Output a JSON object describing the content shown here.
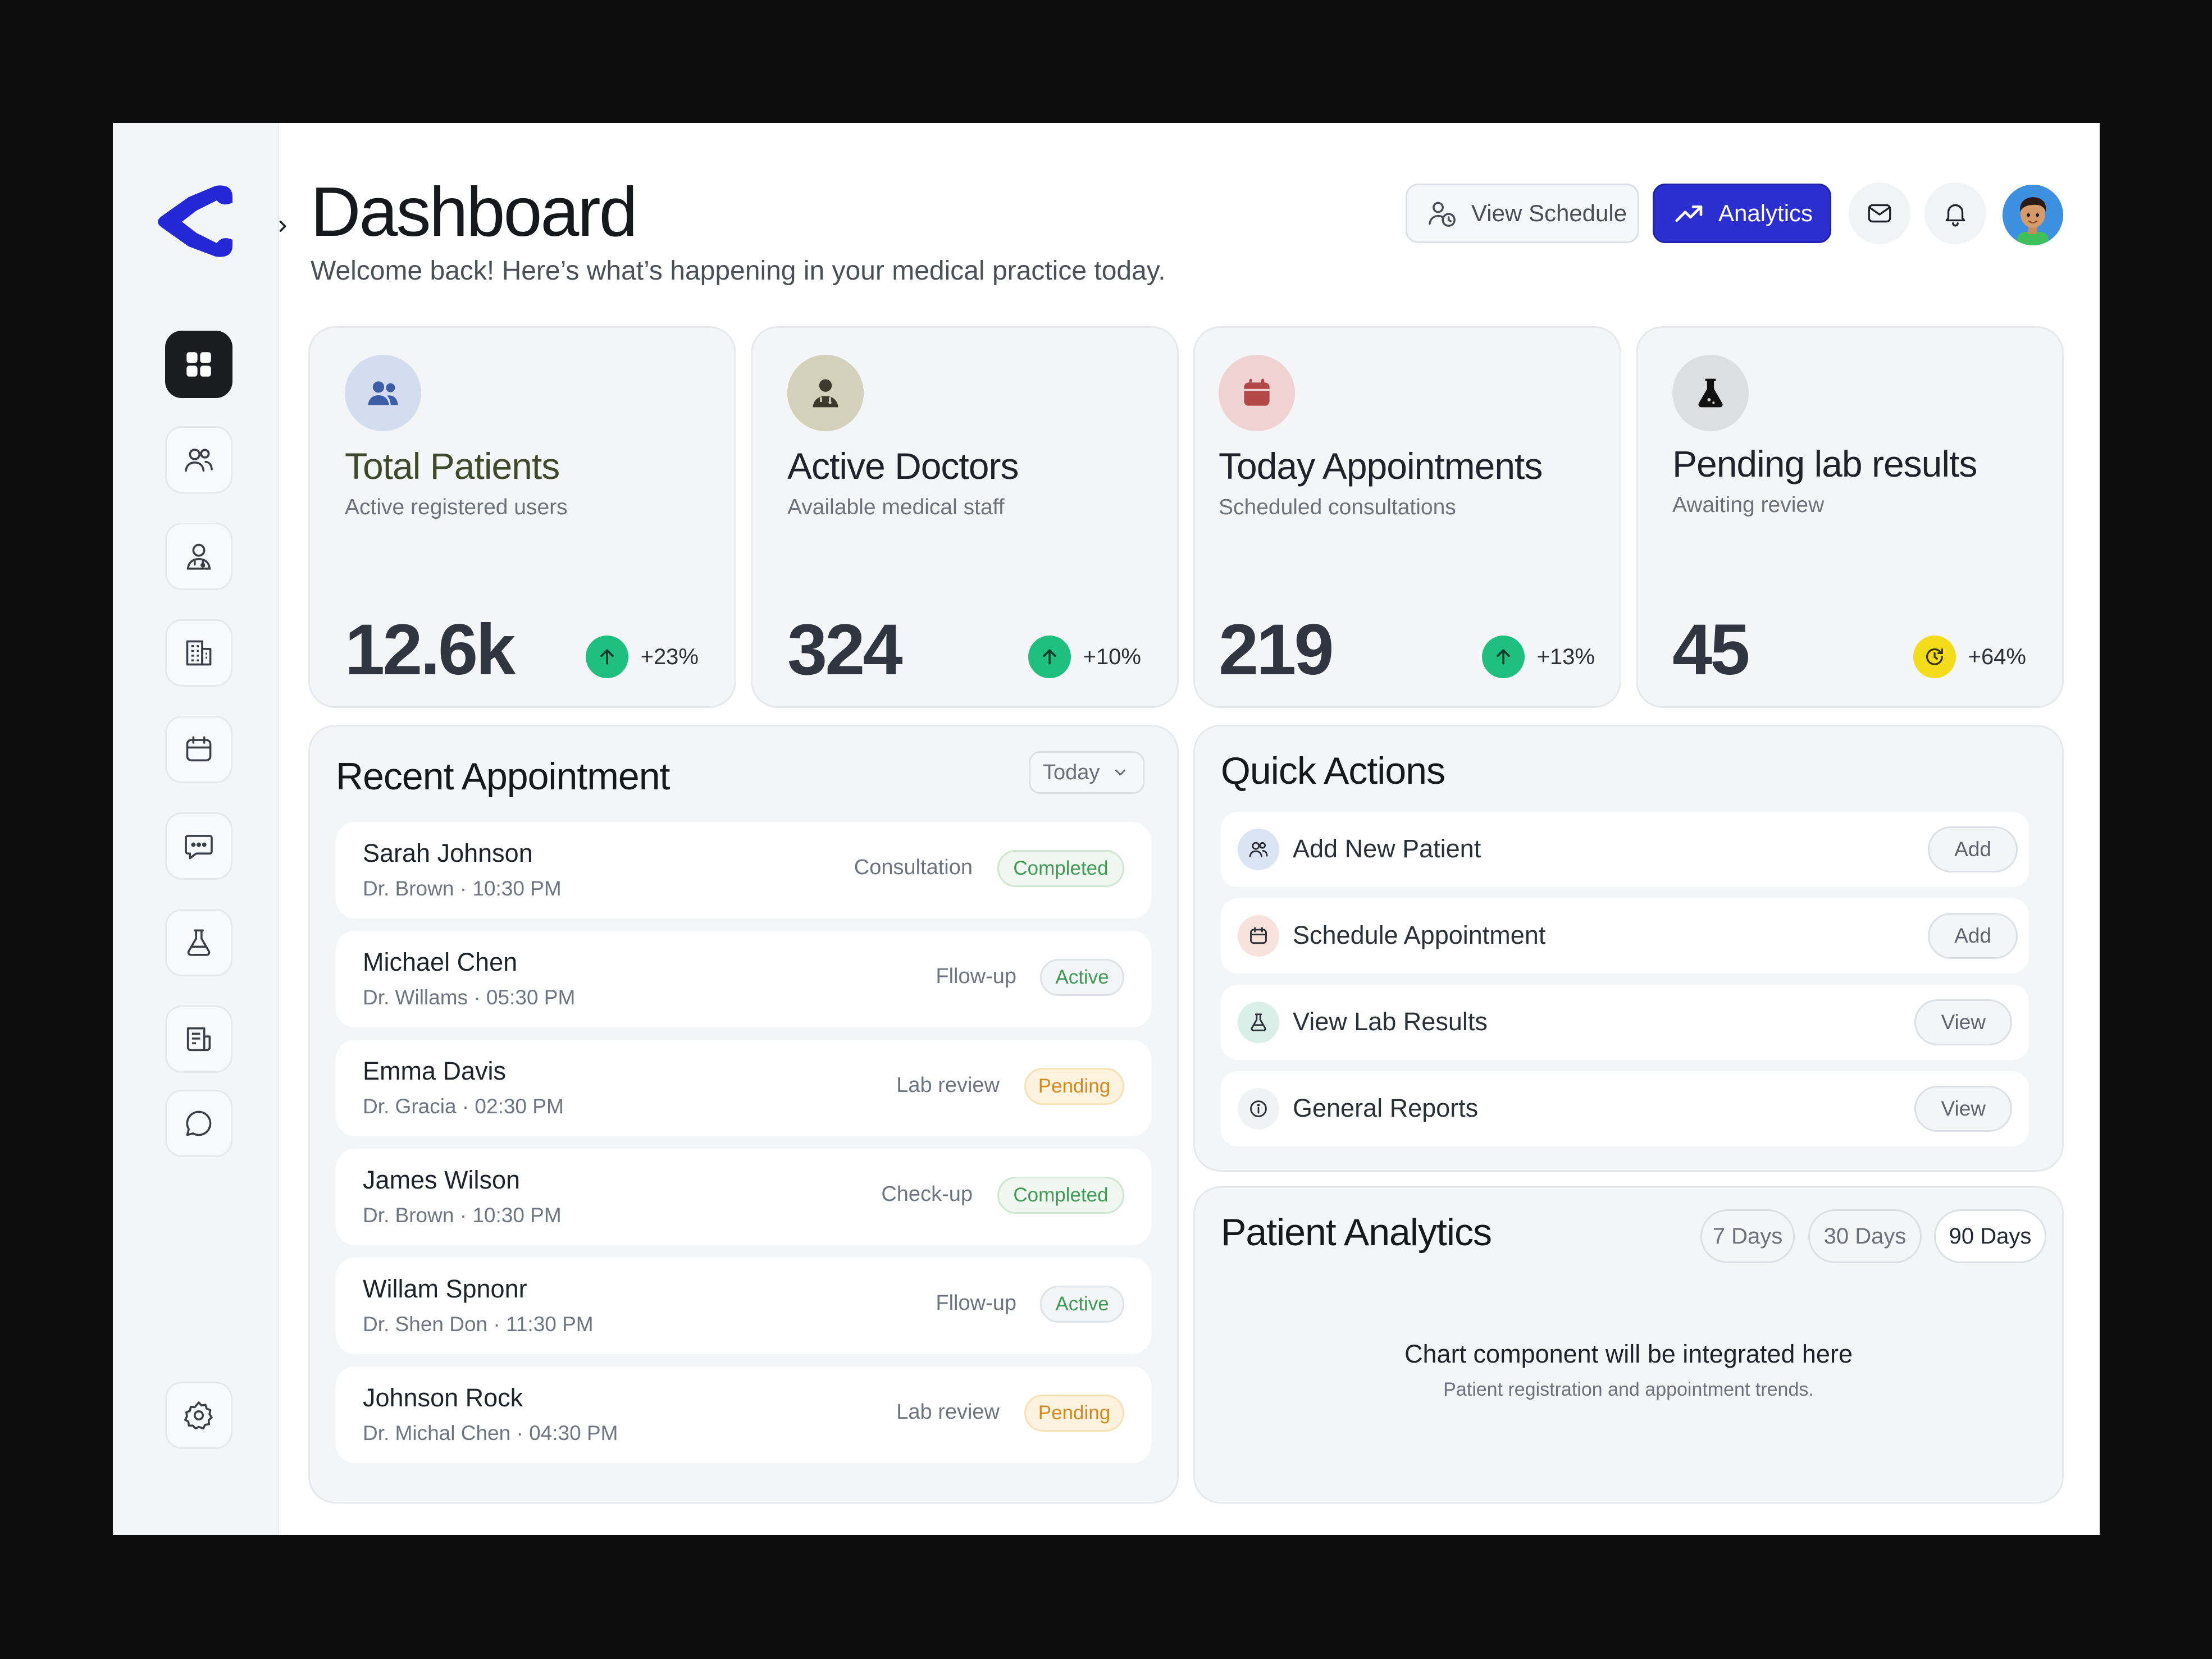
{
  "header": {
    "title": "Dashboard",
    "subtitle": "Welcome back! Here’s what’s happening in your medical practice today.",
    "view_schedule_label": "View Schedule",
    "analytics_label": "Analytics"
  },
  "sidebar": {
    "items": [
      {
        "name": "dashboard",
        "icon": "grid-icon",
        "active": true
      },
      {
        "name": "patients",
        "icon": "users-icon"
      },
      {
        "name": "doctors",
        "icon": "doctor-icon"
      },
      {
        "name": "departments",
        "icon": "building-icon"
      },
      {
        "name": "appointments",
        "icon": "calendar-icon"
      },
      {
        "name": "messages",
        "icon": "message-icon"
      },
      {
        "name": "lab",
        "icon": "flask-icon"
      },
      {
        "name": "reports",
        "icon": "report-icon"
      },
      {
        "name": "chat",
        "icon": "chat-icon"
      },
      {
        "name": "settings",
        "icon": "gear-icon"
      }
    ]
  },
  "stats": [
    {
      "title": "Total Patients",
      "subtitle": "Active registered users",
      "value": "12.6k",
      "change": "+23%",
      "icon": "users-icon"
    },
    {
      "title": "Active Doctors",
      "subtitle": "Available medical staff",
      "value": "324",
      "change": "+10%",
      "icon": "doctor-icon"
    },
    {
      "title": "Today Appointments",
      "subtitle": "Scheduled consultations",
      "value": "219",
      "change": "+13%",
      "icon": "calendar-icon"
    },
    {
      "title": "Pending lab results",
      "subtitle": "Awaiting review",
      "value": "45",
      "change": "+64%",
      "icon": "flask-icon"
    }
  ],
  "recent": {
    "title": "Recent Appointment",
    "filter": "Today",
    "items": [
      {
        "name": "Sarah Johnson",
        "meta": "Dr. Brown · 10:30 PM",
        "type": "Consultation",
        "status": "Completed"
      },
      {
        "name": "Michael Chen",
        "meta": "Dr. Willams · 05:30 PM",
        "type": "Fllow-up",
        "status": "Active"
      },
      {
        "name": "Emma Davis",
        "meta": "Dr. Gracia · 02:30 PM",
        "type": "Lab review",
        "status": "Pending"
      },
      {
        "name": "James Wilson",
        "meta": "Dr. Brown · 10:30 PM",
        "type": "Check-up",
        "status": "Completed"
      },
      {
        "name": "Willam Spnonr",
        "meta": "Dr. Shen Don · 11:30 PM",
        "type": "Fllow-up",
        "status": "Active"
      },
      {
        "name": "Johnson Rock",
        "meta": "Dr. Michal Chen · 04:30 PM",
        "type": "Lab review",
        "status": "Pending"
      }
    ]
  },
  "quick_actions": {
    "title": "Quick Actions",
    "items": [
      {
        "label": "Add New Patient",
        "button": "Add",
        "icon": "users-icon"
      },
      {
        "label": "Schedule Appointment",
        "button": "Add",
        "icon": "calendar-icon"
      },
      {
        "label": "View Lab Results",
        "button": "View",
        "icon": "flask-icon"
      },
      {
        "label": "General Reports",
        "button": "View",
        "icon": "info-icon"
      }
    ]
  },
  "analytics": {
    "title": "Patient Analytics",
    "ranges": [
      "7 Days",
      "30 Days",
      "90 Days"
    ],
    "selected_range": "90 Days",
    "placeholder": "Chart component will be integrated here",
    "placeholder_sub": "Patient registration and appointment trends."
  },
  "colors": {
    "primary": "#2b2fcf",
    "logo": "#2427d6",
    "trend_up": "#1fbf7f",
    "trend_warn": "#f2dc1c",
    "completed": "#3f9a55",
    "pending": "#d28a1e"
  }
}
